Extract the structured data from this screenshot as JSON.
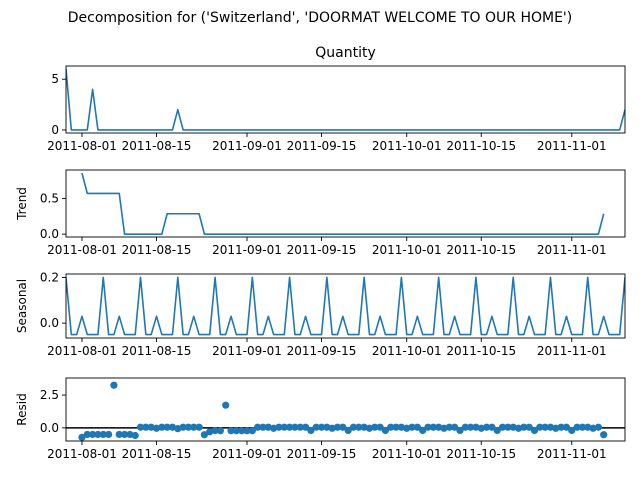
{
  "suptitle": "Decomposition for ('Switzerland', 'DOORMAT WELCOME TO OUR HOME')",
  "colors": {
    "series": "#1f77b4",
    "axis": "#000000",
    "background": "#ffffff"
  },
  "chart_data": [
    {
      "type": "line",
      "title": "Quantity",
      "ylabel": "",
      "x_start": "2011-07-29",
      "x_end": "2011-11-11",
      "x_ticks": [
        "2011-08-01",
        "2011-08-15",
        "2011-09-01",
        "2011-09-15",
        "2011-10-01",
        "2011-10-15",
        "2011-11-01"
      ],
      "ylim": [
        -0.3,
        6.3
      ],
      "y_ticks": [
        {
          "value": 0,
          "label": "0"
        },
        {
          "value": 5,
          "label": "5"
        }
      ],
      "points": [
        [
          "2011-07-29",
          6
        ],
        [
          "2011-07-30",
          0
        ],
        [
          "2011-08-01",
          0
        ],
        [
          "2011-08-02",
          0
        ],
        [
          "2011-08-03",
          4
        ],
        [
          "2011-08-04",
          0
        ],
        [
          "2011-08-05",
          0
        ],
        [
          "2011-08-18",
          0
        ],
        [
          "2011-08-19",
          2
        ],
        [
          "2011-08-20",
          0
        ],
        [
          "2011-08-21",
          0
        ],
        [
          "2011-11-10",
          0
        ],
        [
          "2011-11-11",
          2
        ]
      ]
    },
    {
      "type": "line",
      "title": "",
      "ylabel": "Trend",
      "x_start": "2011-07-29",
      "x_end": "2011-11-11",
      "x_ticks": [
        "2011-08-01",
        "2011-08-15",
        "2011-09-01",
        "2011-09-15",
        "2011-10-01",
        "2011-10-15",
        "2011-11-01"
      ],
      "ylim": [
        -0.04,
        0.9
      ],
      "y_ticks": [
        {
          "value": 0.0,
          "label": "0.0"
        },
        {
          "value": 0.5,
          "label": "0.5"
        }
      ],
      "points": [
        [
          "2011-08-01",
          0.857
        ],
        [
          "2011-08-02",
          0.571
        ],
        [
          "2011-08-08",
          0.571
        ],
        [
          "2011-08-09",
          0.0
        ],
        [
          "2011-08-16",
          0.0
        ],
        [
          "2011-08-17",
          0.286
        ],
        [
          "2011-08-23",
          0.286
        ],
        [
          "2011-08-24",
          0.0
        ],
        [
          "2011-11-06",
          0.0
        ],
        [
          "2011-11-07",
          0.286
        ]
      ]
    },
    {
      "type": "line",
      "title": "",
      "ylabel": "Seasonal",
      "x_start": "2011-07-29",
      "x_end": "2011-11-11",
      "x_ticks": [
        "2011-08-01",
        "2011-08-15",
        "2011-09-01",
        "2011-09-15",
        "2011-10-01",
        "2011-10-15",
        "2011-11-01"
      ],
      "ylim": [
        -0.065,
        0.215
      ],
      "y_ticks": [
        {
          "value": 0.0,
          "label": "0.0"
        },
        {
          "value": 0.2,
          "label": "0.2"
        }
      ],
      "start_date": "2011-07-29",
      "weekly_pattern": [
        0.2,
        -0.05,
        -0.05,
        0.03,
        -0.05,
        -0.05,
        -0.05
      ]
    },
    {
      "type": "scatter",
      "title": "",
      "ylabel": "Resid",
      "x_start": "2011-07-29",
      "x_end": "2011-11-11",
      "x_ticks": [
        "2011-08-01",
        "2011-08-15",
        "2011-09-01",
        "2011-09-15",
        "2011-10-01",
        "2011-10-15",
        "2011-11-01"
      ],
      "ylim": [
        -1.0,
        3.8
      ],
      "y_ticks": [
        {
          "value": 0.0,
          "label": "0.0"
        },
        {
          "value": 2.5,
          "label": "2.5"
        }
      ],
      "baseline": 0,
      "points": [
        [
          "2011-08-01",
          -0.72
        ],
        [
          "2011-08-02",
          -0.5
        ],
        [
          "2011-08-03",
          -0.5
        ],
        [
          "2011-08-04",
          -0.5
        ],
        [
          "2011-08-05",
          -0.5
        ],
        [
          "2011-08-06",
          -0.5
        ],
        [
          "2011-08-07",
          3.25
        ],
        [
          "2011-08-08",
          -0.5
        ],
        [
          "2011-08-09",
          -0.5
        ],
        [
          "2011-08-10",
          -0.5
        ],
        [
          "2011-08-11",
          -0.58
        ],
        [
          "2011-08-12",
          0.05
        ],
        [
          "2011-08-13",
          0.05
        ],
        [
          "2011-08-14",
          0.05
        ],
        [
          "2011-08-15",
          -0.03
        ],
        [
          "2011-08-16",
          0.05
        ],
        [
          "2011-08-17",
          0.05
        ],
        [
          "2011-08-18",
          0.05
        ],
        [
          "2011-08-19",
          -0.06
        ],
        [
          "2011-08-20",
          0.05
        ],
        [
          "2011-08-21",
          0.05
        ],
        [
          "2011-08-22",
          0.05
        ],
        [
          "2011-08-23",
          0.05
        ],
        [
          "2011-08-24",
          -0.52
        ],
        [
          "2011-08-25",
          -0.3
        ],
        [
          "2011-08-26",
          -0.21
        ],
        [
          "2011-08-27",
          -0.22
        ],
        [
          "2011-08-28",
          1.73
        ],
        [
          "2011-08-29",
          -0.22
        ],
        [
          "2011-08-30",
          -0.22
        ],
        [
          "2011-08-31",
          -0.22
        ],
        [
          "2011-09-01",
          -0.22
        ],
        [
          "2011-09-02",
          -0.22
        ],
        [
          "2011-09-03",
          0.05
        ],
        [
          "2011-09-04",
          0.05
        ],
        [
          "2011-09-05",
          0.05
        ],
        [
          "2011-09-06",
          -0.03
        ],
        [
          "2011-09-07",
          0.05
        ],
        [
          "2011-09-08",
          0.05
        ],
        [
          "2011-09-09",
          0.05
        ],
        [
          "2011-09-10",
          0.05
        ],
        [
          "2011-09-11",
          0.05
        ],
        [
          "2011-09-12",
          0.05
        ],
        [
          "2011-09-13",
          -0.2
        ],
        [
          "2011-09-14",
          0.05
        ],
        [
          "2011-09-15",
          0.05
        ],
        [
          "2011-09-16",
          0.05
        ],
        [
          "2011-09-17",
          -0.03
        ],
        [
          "2011-09-18",
          0.05
        ],
        [
          "2011-09-19",
          0.05
        ],
        [
          "2011-09-20",
          -0.2
        ],
        [
          "2011-09-21",
          0.05
        ],
        [
          "2011-09-22",
          0.05
        ],
        [
          "2011-09-23",
          0.05
        ],
        [
          "2011-09-24",
          -0.03
        ],
        [
          "2011-09-25",
          0.05
        ],
        [
          "2011-09-26",
          0.05
        ],
        [
          "2011-09-27",
          -0.2
        ],
        [
          "2011-09-28",
          0.05
        ],
        [
          "2011-09-29",
          0.05
        ],
        [
          "2011-09-30",
          0.05
        ],
        [
          "2011-10-01",
          -0.03
        ],
        [
          "2011-10-02",
          0.05
        ],
        [
          "2011-10-03",
          0.05
        ],
        [
          "2011-10-04",
          -0.2
        ],
        [
          "2011-10-05",
          0.05
        ],
        [
          "2011-10-06",
          0.05
        ],
        [
          "2011-10-07",
          0.05
        ],
        [
          "2011-10-08",
          -0.03
        ],
        [
          "2011-10-09",
          0.05
        ],
        [
          "2011-10-10",
          0.05
        ],
        [
          "2011-10-11",
          -0.2
        ],
        [
          "2011-10-12",
          0.05
        ],
        [
          "2011-10-13",
          0.05
        ],
        [
          "2011-10-14",
          0.05
        ],
        [
          "2011-10-15",
          -0.03
        ],
        [
          "2011-10-16",
          0.05
        ],
        [
          "2011-10-17",
          0.05
        ],
        [
          "2011-10-18",
          -0.2
        ],
        [
          "2011-10-19",
          0.05
        ],
        [
          "2011-10-20",
          0.05
        ],
        [
          "2011-10-21",
          0.05
        ],
        [
          "2011-10-22",
          -0.03
        ],
        [
          "2011-10-23",
          0.05
        ],
        [
          "2011-10-24",
          0.05
        ],
        [
          "2011-10-25",
          -0.2
        ],
        [
          "2011-10-26",
          0.05
        ],
        [
          "2011-10-27",
          0.05
        ],
        [
          "2011-10-28",
          0.05
        ],
        [
          "2011-10-29",
          -0.03
        ],
        [
          "2011-10-30",
          0.05
        ],
        [
          "2011-10-31",
          0.05
        ],
        [
          "2011-11-01",
          -0.2
        ],
        [
          "2011-11-02",
          0.05
        ],
        [
          "2011-11-03",
          0.05
        ],
        [
          "2011-11-04",
          0.05
        ],
        [
          "2011-11-05",
          -0.03
        ],
        [
          "2011-11-06",
          0.05
        ],
        [
          "2011-11-07",
          -0.52
        ]
      ]
    }
  ]
}
